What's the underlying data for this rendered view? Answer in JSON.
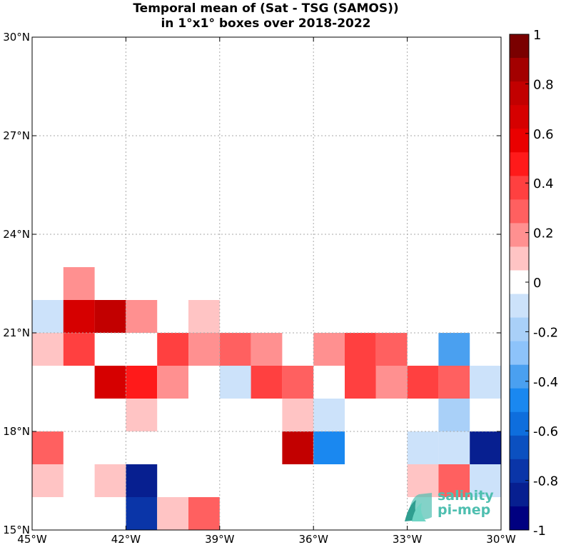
{
  "title": [
    "Temporal mean of (Sat - TSG (SAMOS))",
    "in 1°x1° boxes over 2018-2022"
  ],
  "map": {
    "lon_range": [
      -45,
      -30
    ],
    "lat_range": [
      15,
      30
    ],
    "x_ticks": [
      "45°W",
      "42°W",
      "39°W",
      "36°W",
      "33°W",
      "30°W"
    ],
    "y_ticks": [
      "15°N",
      "18°N",
      "21°N",
      "24°N",
      "27°N",
      "30°N"
    ],
    "grid": "dotted"
  },
  "colorbar": {
    "range": [
      -1,
      1
    ],
    "levels": 20,
    "tick_labels": [
      "1",
      "0.8",
      "0.6",
      "0.4",
      "0.2",
      "0",
      "-0.2",
      "-0.4",
      "-0.6",
      "-0.8",
      "-1"
    ],
    "colors": [
      "#7a0000",
      "#a30000",
      "#c20000",
      "#d60000",
      "#ea0000",
      "#ff1a1a",
      "#ff4040",
      "#ff6060",
      "#ff9090",
      "#ffc4c4",
      "#ffffff",
      "#cce2fa",
      "#a9d0f8",
      "#8dc3fa",
      "#4aa0f0",
      "#1a88f0",
      "#0e6edd",
      "#0b50c0",
      "#0a35a8",
      "#071f90",
      "#000080"
    ]
  },
  "cells": [
    {
      "lon": -44,
      "lat": 22,
      "value": 0.25
    },
    {
      "lon": -45,
      "lat": 21,
      "value": -0.12
    },
    {
      "lon": -44,
      "lat": 21,
      "value": 0.75
    },
    {
      "lon": -43,
      "lat": 21,
      "value": 0.85
    },
    {
      "lon": -42,
      "lat": 21,
      "value": 0.25
    },
    {
      "lon": -40,
      "lat": 21,
      "value": 0.12
    },
    {
      "lon": -45,
      "lat": 20,
      "value": 0.12
    },
    {
      "lon": -44,
      "lat": 20,
      "value": 0.45
    },
    {
      "lon": -41,
      "lat": 20,
      "value": 0.45
    },
    {
      "lon": -40,
      "lat": 20,
      "value": 0.25
    },
    {
      "lon": -39,
      "lat": 20,
      "value": 0.35
    },
    {
      "lon": -38,
      "lat": 20,
      "value": 0.25
    },
    {
      "lon": -36,
      "lat": 20,
      "value": 0.25
    },
    {
      "lon": -35,
      "lat": 20,
      "value": 0.45
    },
    {
      "lon": -34,
      "lat": 20,
      "value": 0.35
    },
    {
      "lon": -32,
      "lat": 20,
      "value": -0.45
    },
    {
      "lon": -43,
      "lat": 19,
      "value": 0.75
    },
    {
      "lon": -42,
      "lat": 19,
      "value": 0.55
    },
    {
      "lon": -41,
      "lat": 19,
      "value": 0.25
    },
    {
      "lon": -39,
      "lat": 19,
      "value": -0.12
    },
    {
      "lon": -38,
      "lat": 19,
      "value": 0.45
    },
    {
      "lon": -37,
      "lat": 19,
      "value": 0.35
    },
    {
      "lon": -35,
      "lat": 19,
      "value": 0.45
    },
    {
      "lon": -34,
      "lat": 19,
      "value": 0.25
    },
    {
      "lon": -33,
      "lat": 19,
      "value": 0.45
    },
    {
      "lon": -32,
      "lat": 19,
      "value": 0.35
    },
    {
      "lon": -31,
      "lat": 19,
      "value": -0.12
    },
    {
      "lon": -42,
      "lat": 18,
      "value": 0.12
    },
    {
      "lon": -37,
      "lat": 18,
      "value": 0.12
    },
    {
      "lon": -36,
      "lat": 18,
      "value": -0.12
    },
    {
      "lon": -32,
      "lat": 18,
      "value": -0.25
    },
    {
      "lon": -45,
      "lat": 17,
      "value": 0.35
    },
    {
      "lon": -37,
      "lat": 17,
      "value": 0.85
    },
    {
      "lon": -36,
      "lat": 17,
      "value": -0.55
    },
    {
      "lon": -33,
      "lat": 17,
      "value": -0.12
    },
    {
      "lon": -32,
      "lat": 17,
      "value": -0.12
    },
    {
      "lon": -31,
      "lat": 17,
      "value": -0.95
    },
    {
      "lon": -45,
      "lat": 16,
      "value": 0.12
    },
    {
      "lon": -43,
      "lat": 16,
      "value": 0.12
    },
    {
      "lon": -42,
      "lat": 16,
      "value": -0.95
    },
    {
      "lon": -33,
      "lat": 16,
      "value": 0.12
    },
    {
      "lon": -32,
      "lat": 16,
      "value": 0.35
    },
    {
      "lon": -31,
      "lat": 16,
      "value": -0.12
    },
    {
      "lon": -42,
      "lat": 15,
      "value": -0.85
    },
    {
      "lon": -41,
      "lat": 15,
      "value": 0.12
    },
    {
      "lon": -40,
      "lat": 15,
      "value": 0.35
    }
  ],
  "logo": {
    "line1": "salinity",
    "line2": "pi-mep"
  }
}
